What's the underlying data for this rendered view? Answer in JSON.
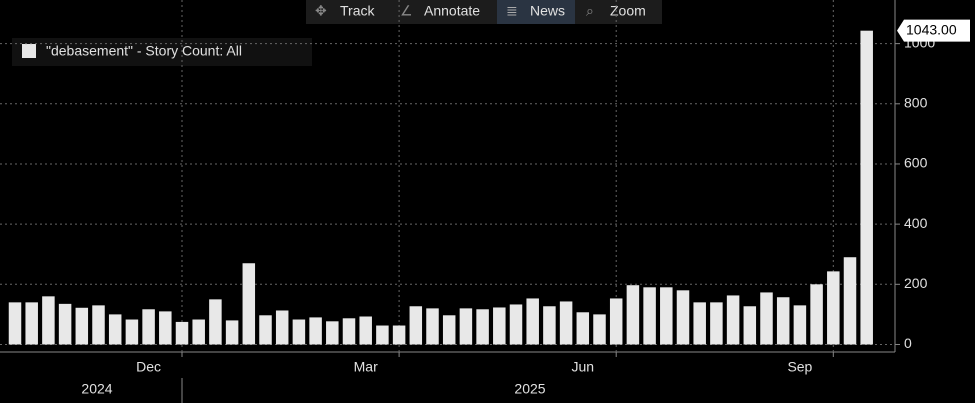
{
  "toolbar": [
    "Track",
    "Annotate",
    "News",
    "Zoom"
  ],
  "chart_data": {
    "type": "bar",
    "categories": [
      null,
      null,
      null,
      null,
      null,
      null,
      null,
      null,
      "Dec",
      null,
      null,
      null,
      null,
      null,
      null,
      null,
      null,
      null,
      null,
      null,
      null,
      "Mar",
      null,
      null,
      null,
      null,
      null,
      null,
      null,
      null,
      null,
      null,
      null,
      null,
      "Jun",
      null,
      null,
      null,
      null,
      null,
      null,
      null,
      null,
      null,
      null,
      null,
      null,
      "Sep",
      null,
      null,
      null,
      null
    ],
    "year_labels": [
      "2024",
      "2025"
    ],
    "series": [
      {
        "name": "\"debasement\" - Story Count: All",
        "color": "#e8e8e8",
        "values": [
          140,
          140,
          160,
          135,
          122,
          130,
          100,
          83,
          117,
          110,
          75,
          83,
          150,
          80,
          270,
          97,
          113,
          83,
          90,
          77,
          87,
          93,
          63,
          63,
          127,
          120,
          97,
          120,
          117,
          123,
          133,
          153,
          127,
          143,
          107,
          100,
          153,
          197,
          190,
          190,
          180,
          140,
          140,
          163,
          127,
          173,
          157,
          130,
          200,
          243,
          290,
          1043
        ],
        "value_labels": [
          null,
          null,
          null,
          null,
          null,
          null,
          null,
          null,
          null,
          null,
          null,
          null,
          null,
          null,
          null,
          null,
          null,
          null,
          null,
          null,
          null,
          null,
          null,
          null,
          null,
          null,
          null,
          null,
          null,
          null,
          null,
          null,
          null,
          null,
          null,
          null,
          null,
          null,
          null,
          null,
          null,
          null,
          null,
          null,
          null,
          null,
          null,
          null,
          null,
          null,
          null,
          "1043.00"
        ]
      }
    ],
    "ylim": [
      -25,
      1145
    ],
    "yticks": [
      0,
      200,
      400,
      600,
      800,
      1000
    ],
    "grid": true
  }
}
